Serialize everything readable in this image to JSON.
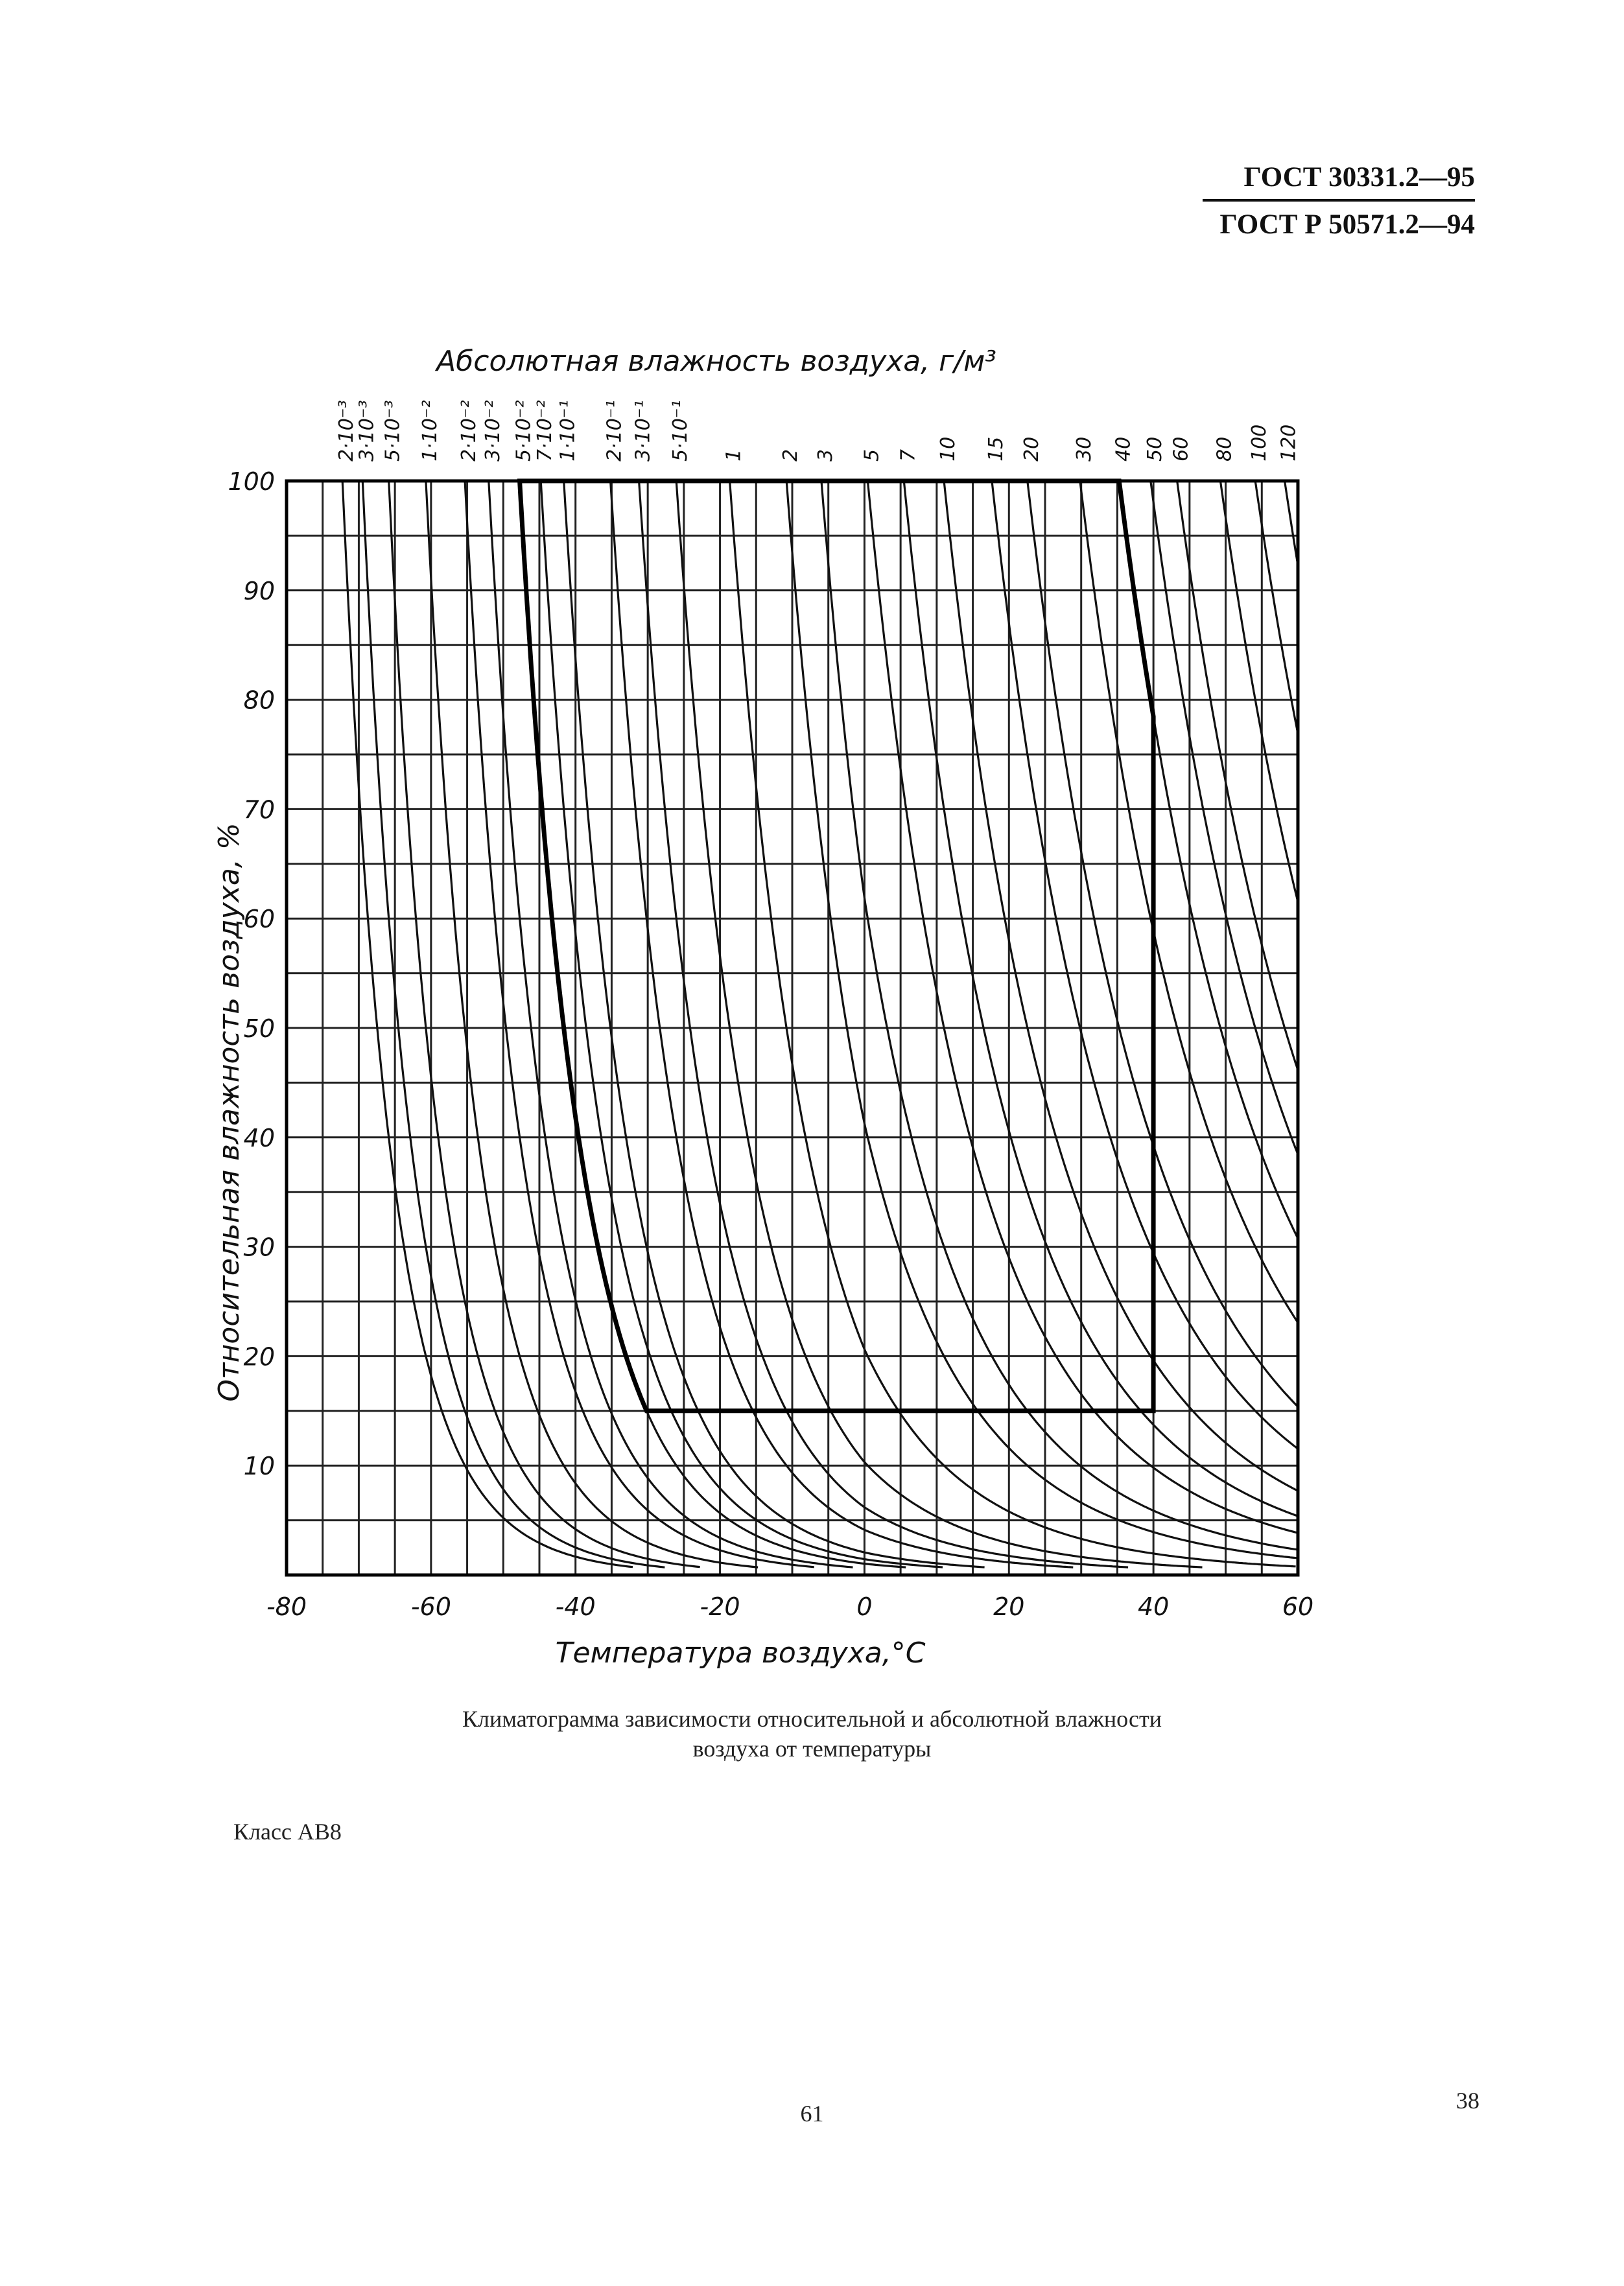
{
  "header": {
    "std1": "ГОСТ 30331.2—95",
    "std2": "ГОСТ Р 50571.2—94"
  },
  "chart_data": {
    "type": "line",
    "top_axis_label": "Абсолютная влажность воздуха, г/м³",
    "xlabel": "Температура воздуха,°C",
    "ylabel": "Относительная влажность воздуха, %",
    "xlim": [
      -80,
      60
    ],
    "ylim": [
      0,
      100
    ],
    "x_ticks": [
      -80,
      -60,
      -40,
      -20,
      0,
      20,
      40,
      60
    ],
    "x_tick_labels": [
      "-80",
      "-60",
      "-40",
      "-20",
      "0",
      "20",
      "40",
      "60"
    ],
    "y_ticks": [
      10,
      20,
      30,
      40,
      50,
      60,
      70,
      80,
      90,
      100
    ],
    "y_tick_labels": [
      "10",
      "20",
      "30",
      "40",
      "50",
      "60",
      "70",
      "80",
      "90",
      "100"
    ],
    "grid": true,
    "absolute_humidity_labels": [
      "2·10⁻³",
      "3·10⁻³",
      "5·10⁻³",
      "1·10⁻²",
      "2·10⁻²",
      "3·10⁻²",
      "5·10⁻²",
      "7·10⁻²",
      "1·10⁻¹",
      "2·10⁻¹",
      "3·10⁻¹",
      "5·10⁻¹",
      "1",
      "2",
      "3",
      "5",
      "7",
      "10",
      "15",
      "20",
      "30",
      "40",
      "50",
      "60",
      "80",
      "100",
      "120"
    ],
    "absolute_humidity_values": [
      0.002,
      0.003,
      0.005,
      0.01,
      0.02,
      0.03,
      0.05,
      0.07,
      0.1,
      0.2,
      0.3,
      0.5,
      1,
      2,
      3,
      5,
      7,
      10,
      15,
      20,
      30,
      40,
      50,
      60,
      80,
      100,
      120
    ],
    "class_region": {
      "left_curve_abs_humidity": 0.05,
      "rh_min": 15,
      "t_max": 40,
      "right_curve_abs_humidity": 40,
      "rh_max": 100
    }
  },
  "caption": {
    "line1": "Климатограмма зависимости относительной и абсолютной влажности",
    "line2": "воздуха от температуры"
  },
  "class_label": "Класс АВ8",
  "page_number": "61",
  "sheet_number": "38"
}
